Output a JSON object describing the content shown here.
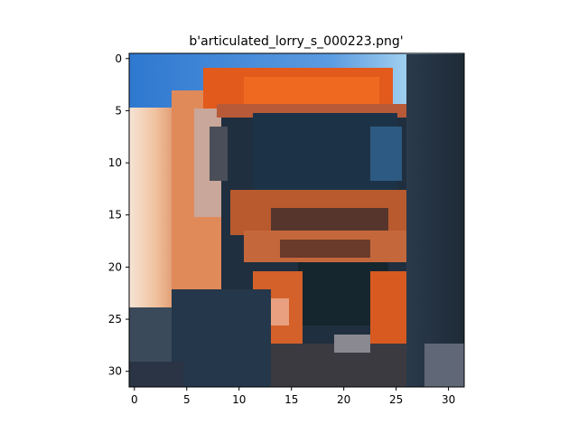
{
  "figure": {
    "title": "b'articulated_lorry_s_000223.png'",
    "image_description": "pixelated 32x32 image of the front of an orange articulated lorry with a dark windshield against a blue sky",
    "x_ticks": [
      "0",
      "5",
      "10",
      "15",
      "20",
      "25",
      "30"
    ],
    "y_ticks": [
      "0",
      "5",
      "10",
      "15",
      "20",
      "25",
      "30"
    ],
    "x_range": [
      -0.5,
      31.5
    ],
    "y_range": [
      -0.5,
      31.5
    ],
    "grid": false
  }
}
